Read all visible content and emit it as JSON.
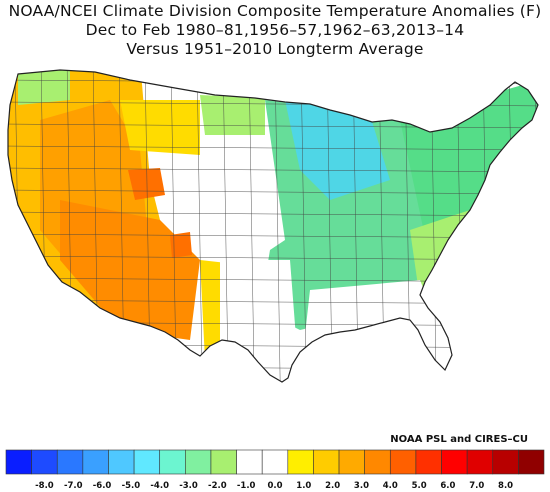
{
  "title": {
    "line1": "NOAA/NCEI Climate Division Composite Temperature Anomalies (F)",
    "line2": "Dec to Feb  1980–81,1956–57,1962–63,2013–14",
    "line3": "Versus 1951–2010 Longterm Average"
  },
  "credit": "NOAA PSL and CIRES–CU",
  "colorbar": {
    "tick_labels": [
      "-8.0",
      "-7.0",
      "-6.0",
      "-5.0",
      "-4.0",
      "-3.0",
      "-2.0",
      "-1.0",
      "0.0",
      "1.0",
      "2.0",
      "3.0",
      "4.0",
      "5.0",
      "6.0",
      "7.0",
      "8.0"
    ],
    "colors": [
      "#0a1eff",
      "#1e4bff",
      "#2a78ff",
      "#3aa0ff",
      "#4fc8ff",
      "#60e8ff",
      "#6cf5d0",
      "#80f0a0",
      "#a8ef70",
      "#ffffff",
      "#ffffff",
      "#ffee00",
      "#ffcc00",
      "#ffaa00",
      "#ff8800",
      "#ff6000",
      "#ff3000",
      "#ff0000",
      "#e00000",
      "#b80000",
      "#900000"
    ]
  },
  "map": {
    "region": "Contiguous United States climate divisions",
    "colors": {
      "west_warm": "#ffbe00",
      "west_hot": "#ffa000",
      "southwest_hot": "#ff8c00",
      "pockets_hotter": "#ff7000",
      "plains_mild": "#ffdc00",
      "neutral": "#ffffff",
      "midwest_cool": "#66dd99",
      "great_lakes_cold": "#4fd6e6",
      "northeast_cool": "#55dd88",
      "southeast_slight": "#a8ef70",
      "border": "#444444"
    }
  }
}
